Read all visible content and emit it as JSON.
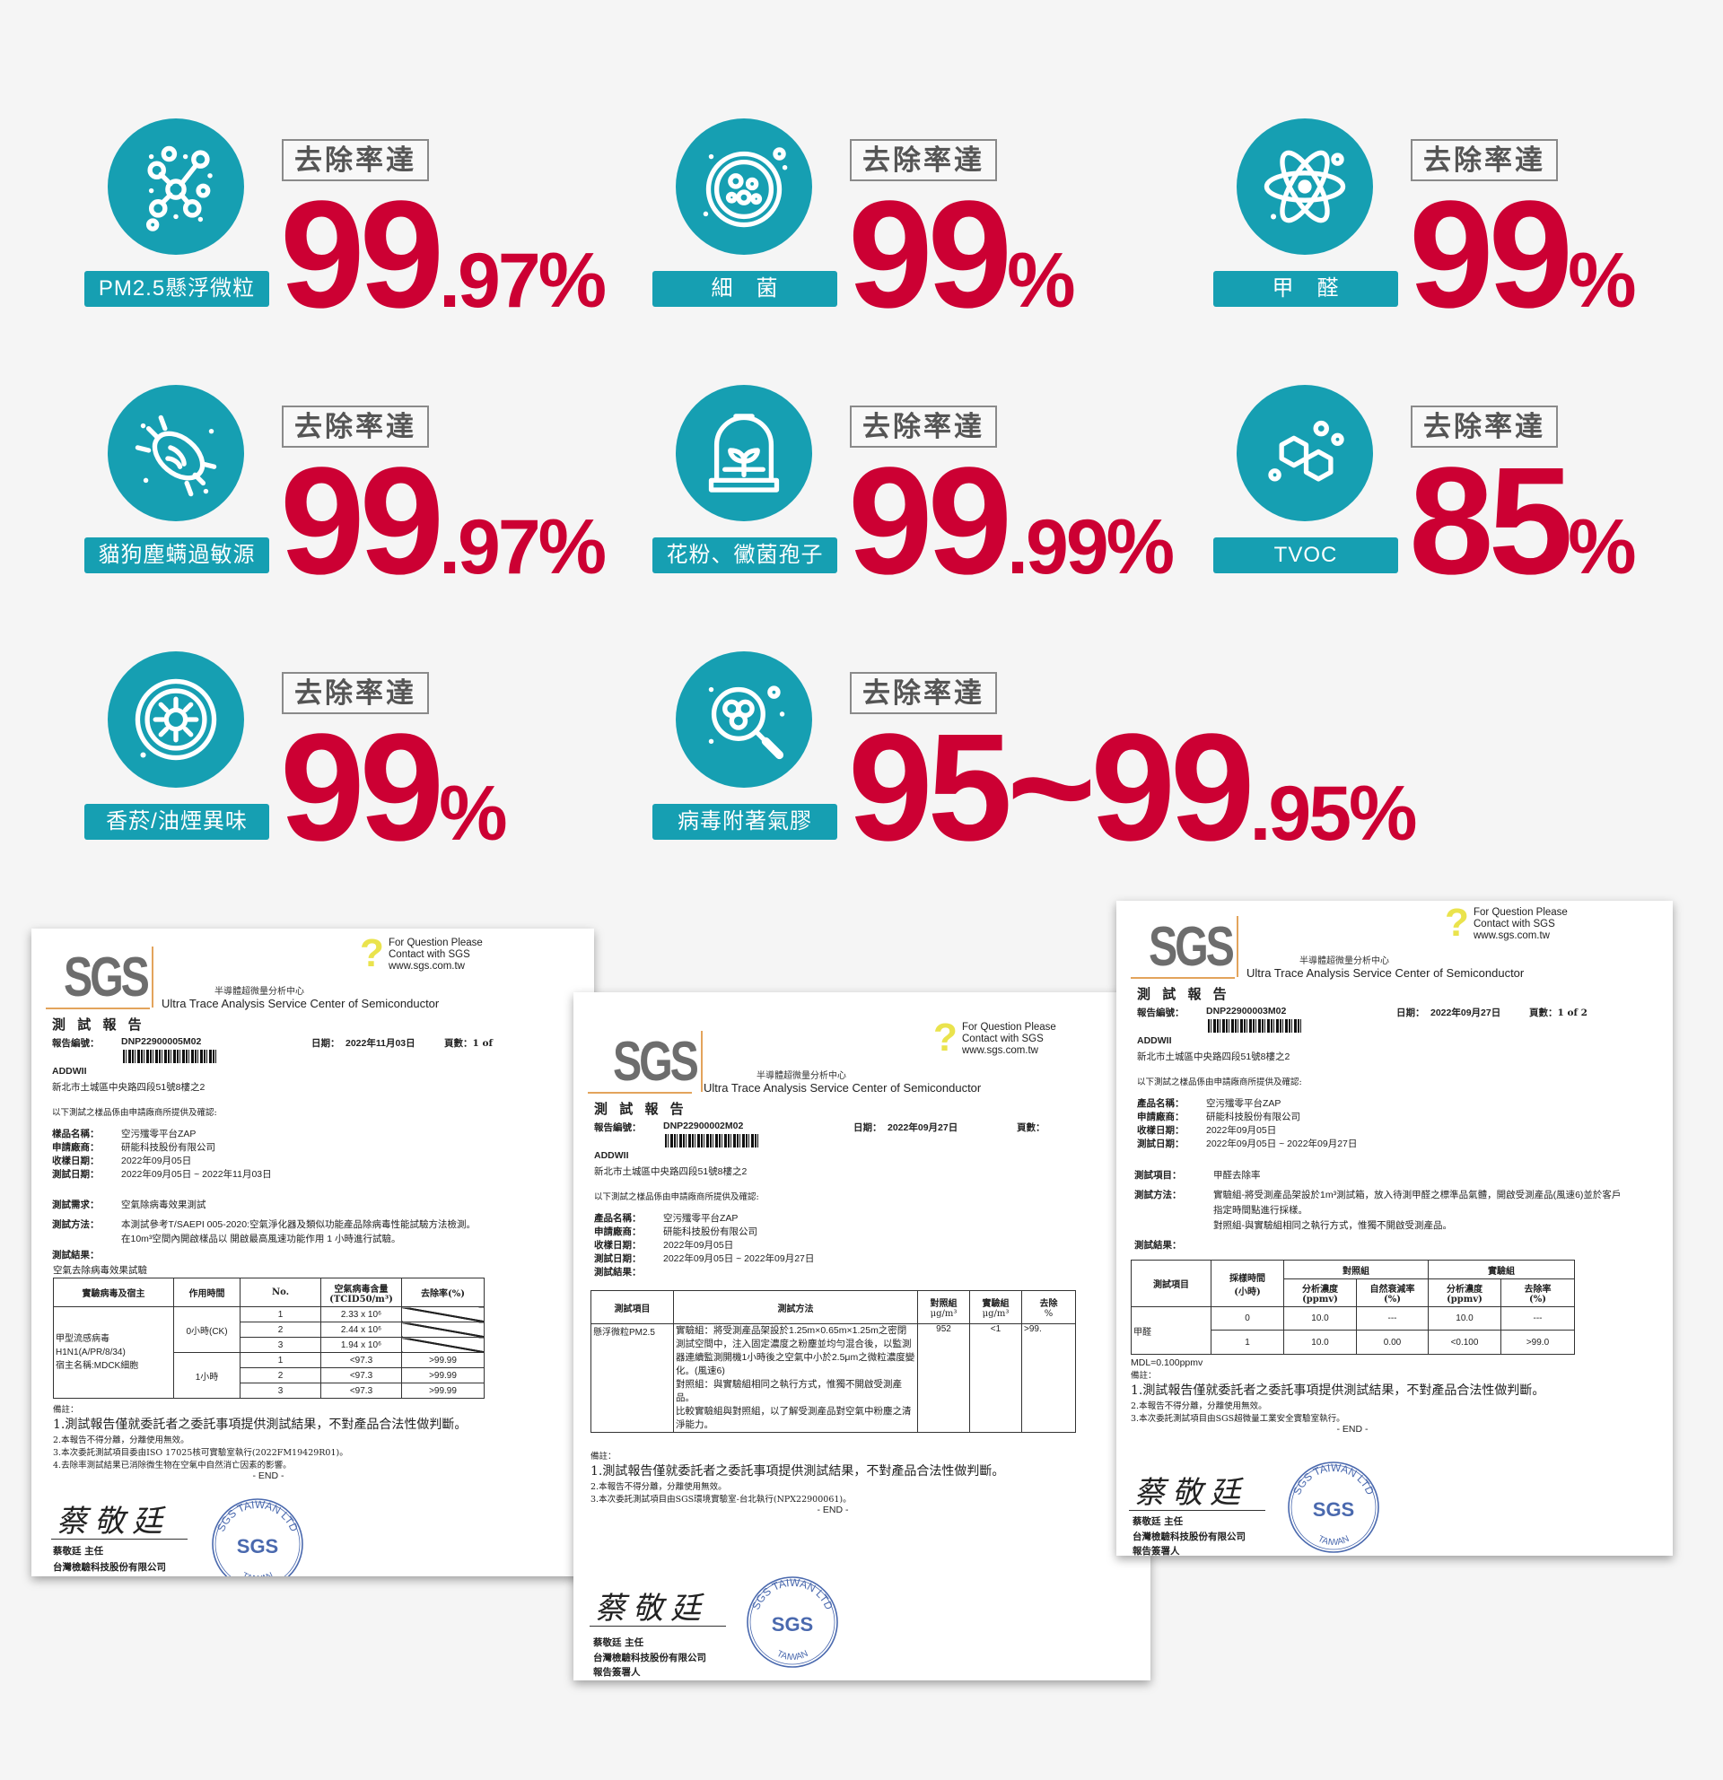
{
  "colors": {
    "accent": "#169fb2",
    "highlight": "#cc0033",
    "background": "#f5f5f5",
    "stamp": "#2b4fa0"
  },
  "cards": [
    {
      "icon": "particle-network-icon",
      "label": "PM2.5懸浮微粒",
      "badge": "去除率達",
      "value": "99",
      "decimal": ".97",
      "percent": "%"
    },
    {
      "icon": "petri-dish-icon",
      "label": "細　菌",
      "badge": "去除率達",
      "value": "99",
      "decimal": "",
      "percent": "%"
    },
    {
      "icon": "atom-icon",
      "label": "甲　醛",
      "badge": "去除率達",
      "value": "99",
      "decimal": "",
      "percent": "%"
    },
    {
      "icon": "mite-icon",
      "label": "貓狗塵螨過敏源",
      "badge": "去除率達",
      "value": "99",
      "decimal": ".97",
      "percent": "%"
    },
    {
      "icon": "bell-jar-plant-icon",
      "label": "花粉、黴菌孢子",
      "badge": "去除率達",
      "value": "99",
      "decimal": ".99",
      "percent": "%"
    },
    {
      "icon": "hexagon-molecule-icon",
      "label": "TVOC",
      "badge": "去除率達",
      "value": "85",
      "decimal": "",
      "percent": "%"
    },
    {
      "icon": "smoke-gear-icon",
      "label": "香菸/油煙異味",
      "badge": "去除率達",
      "value": "99",
      "decimal": "",
      "percent": "%"
    },
    {
      "icon": "virus-magnifier-icon",
      "label": "病毒附著氣膠",
      "badge": "去除率達",
      "value": "95~99",
      "decimal": ".95",
      "percent": "%"
    }
  ],
  "common": {
    "logo": "SGS",
    "question": "?",
    "q1": "For Question Please",
    "q2": "Contact with SGS",
    "q3": "www.sgs.com.tw",
    "center_cn": "半導體超微量分析中心",
    "center_en": "Ultra Trace Analysis Service Center of Semiconductor",
    "title": "測 試 報 告",
    "report_no_label": "報告編號：",
    "date_label": "日期：",
    "client": "ADDWII",
    "address": "新北市土城區中央路四段51號8樓之2",
    "intro": "以下測試之樣品係由申請廠商所提供及確認:",
    "notes_label": "備註：",
    "note1": "1.測試報告僅就委託者之委託事項提供測試結果，不對產品合法性做判斷。",
    "note2": "2.本報告不得分離，分離使用無效。",
    "end": "- END -",
    "signature": "蔡敬廷",
    "signer": "蔡敬廷 主任",
    "company": "台灣檢驗科技股份有限公司",
    "signatory": "報告簽署人",
    "stamp_ring": "SGS TAIWAN LTD",
    "stamp_center": "SGS",
    "stamp_bottom": "TAIWAN"
  },
  "docs": [
    {
      "report_no": "DNP22900005M02",
      "date": "2022年11月03日",
      "page": "頁數：1 of",
      "fields": [
        {
          "label": "樣品名稱：",
          "value": "空污殲零平台ZAP"
        },
        {
          "label": "申請廠商：",
          "value": "研能科技股份有限公司"
        },
        {
          "label": "收樣日期：",
          "value": "2022年09月05日"
        },
        {
          "label": "測試日期：",
          "value": "2022年09月05日 ~ 2022年11月03日"
        }
      ],
      "req_label": "測試需求：",
      "req": "空氣除病毒效果測試",
      "method_label": "測試方法：",
      "method1": "本測試參考T/SAEPI 005-2020:空氣淨化器及類似功能產品除病毒性能試驗方法檢測。",
      "method2": "在10m³空間內開啟樣品以 開啟最高風速功能作用 1 小時進行試驗。",
      "result_label": "測試結果：",
      "result_title": "空氣去除病毒效果試驗",
      "table": {
        "h": [
          "實驗病毒及宿主",
          "作用時間",
          "No.",
          "空氣病毒含量",
          "(TCID50/m³)",
          "去除率(%)"
        ],
        "virus": [
          "甲型流感病毒",
          "H1N1(A/PR/8/34)",
          "宿主名稱:MDCK細胞"
        ],
        "times": [
          "0小時(CK)",
          "1小時"
        ],
        "rows": [
          {
            "no": "1",
            "v": "2.33 x 10⁶",
            "r": ""
          },
          {
            "no": "2",
            "v": "2.44 x 10⁶",
            "r": ""
          },
          {
            "no": "3",
            "v": "1.94 x 10⁶",
            "r": ""
          },
          {
            "no": "1",
            "v": "<97.3",
            "r": ">99.99"
          },
          {
            "no": "2",
            "v": "<97.3",
            "r": ">99.99"
          },
          {
            "no": "3",
            "v": "<97.3",
            "r": ">99.99"
          }
        ]
      },
      "note3": "3.本次委託測試項目委由ISO 17025核可實驗室執行(2022FM19429R01)。",
      "note4": "4.去除率測試結果已消除微生物在空氣中自然消亡因素的影響。"
    },
    {
      "report_no": "DNP22900002M02",
      "date": "2022年09月27日",
      "page": "頁數：",
      "fields": [
        {
          "label": "產品名稱：",
          "value": "空污殲零平台ZAP"
        },
        {
          "label": "申請廠商：",
          "value": "研能科技股份有限公司"
        },
        {
          "label": "收樣日期：",
          "value": "2022年09月05日"
        },
        {
          "label": "測試日期：",
          "value": "2022年09月05日 ~ 2022年09月27日"
        },
        {
          "label": "測試結果：",
          "value": ""
        }
      ],
      "table": {
        "h": [
          "測試項目",
          "測試方法",
          "對照組",
          "μg/m³",
          "實驗組",
          "μg/m³",
          "去除",
          "%"
        ],
        "item": "懸浮微粒PM2.5",
        "method": [
          "實驗組：將受測產品架設於1.25m×0.65m×1.25m之密閉測試空間中，注入固定濃度之粉塵並均勻混合後，以監測器連續監測開機1小時後之空氣中小於2.5μm之微粒濃度變化。(風速6)",
          "對照組：與實驗組相同之執行方式，惟獨不開啟受測產品。",
          "比較實驗組與對照組，以了解受測產品對空氣中粉塵之清淨能力。"
        ],
        "control": "952",
        "experiment": "<1",
        "removal": ">99."
      },
      "note3": "3.本次委託測試項目由SGS環境實驗室-台北執行(NPX22900061)。"
    },
    {
      "report_no": "DNP22900003M02",
      "date": "2022年09月27日",
      "page": "頁數：1 of 2",
      "fields": [
        {
          "label": "產品名稱：",
          "value": "空污殲零平台ZAP"
        },
        {
          "label": "申請廠商：",
          "value": "研能科技股份有限公司"
        },
        {
          "label": "收樣日期：",
          "value": "2022年09月05日"
        },
        {
          "label": "測試日期：",
          "value": "2022年09月05日 ~ 2022年09月27日"
        }
      ],
      "item_label": "測試項目：",
      "item": "甲醛去除率",
      "method_label": "測試方法：",
      "method1": "實驗組-將受測產品架設於1m³測試箱，放入待測甲醛之標準品氣體，開啟受測產品(風速6)並於客戶",
      "method2": "指定時間點進行採樣。",
      "method3": "對照組-與實驗組相同之執行方式，惟獨不開啟受測產品。",
      "result_label": "測試結果：",
      "table": {
        "h": [
          "測試項目",
          "採樣時間",
          "(小時)",
          "對照組",
          "實驗組",
          "分析濃度",
          "(ppmv)",
          "自然衰減率",
          "(%)",
          "分析濃度",
          "(ppmv)",
          "去除率",
          "(%)"
        ],
        "item": "甲醛",
        "rows": [
          {
            "t": "0",
            "c": "10.0",
            "d": "---",
            "e": "10.0",
            "r": "---"
          },
          {
            "t": "1",
            "c": "10.0",
            "d": "0.00",
            "e": "<0.100",
            "r": ">99.0"
          }
        ]
      },
      "mdl": "MDL=0.100ppmv",
      "note3": "3.本次委託測試項目由SGS超微量工業安全實驗室執行。"
    }
  ]
}
